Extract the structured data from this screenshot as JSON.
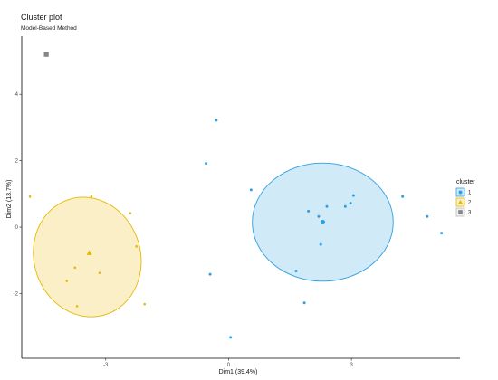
{
  "chart_data": {
    "type": "scatter",
    "title": "Cluster plot",
    "subtitle": "Model-Based Method",
    "xlabel": "Dim1 (39.4%)",
    "ylabel": "Dim2 (13.7%)",
    "xlim": [
      -5.05,
      5.65
    ],
    "ylim": [
      -3.95,
      5.75
    ],
    "x_ticks": [
      -3,
      0,
      3
    ],
    "x_tick_labels": [
      "-3",
      "0",
      "3"
    ],
    "y_ticks": [
      -2,
      0,
      2,
      4
    ],
    "y_tick_labels": [
      "-2",
      "0",
      "2",
      "4"
    ],
    "grid": false,
    "legend": {
      "title": "cluster",
      "position": "right",
      "entries": [
        {
          "label": "1",
          "color": "#2E9FDF",
          "shape": "circle"
        },
        {
          "label": "2",
          "color": "#E7B800",
          "shape": "triangle"
        },
        {
          "label": "3",
          "color": "#868686",
          "shape": "square"
        }
      ]
    },
    "series": [
      {
        "name": "1",
        "color": "#2E9FDF",
        "shape": "circle",
        "centroid": [
          2.3,
          0.15
        ],
        "ellipse": {
          "cx": 2.3,
          "cy": 0.15,
          "rx": 1.72,
          "ry": 1.78,
          "rotation": 0
        },
        "points": [
          [
            -0.3,
            3.22
          ],
          [
            -0.55,
            1.92
          ],
          [
            0.55,
            1.12
          ],
          [
            -0.45,
            -1.42
          ],
          [
            1.65,
            -1.32
          ],
          [
            1.95,
            0.48
          ],
          [
            2.2,
            0.32
          ],
          [
            2.4,
            0.62
          ],
          [
            2.25,
            -0.52
          ],
          [
            2.85,
            0.62
          ],
          [
            2.98,
            0.72
          ],
          [
            3.05,
            0.95
          ],
          [
            1.85,
            -2.28
          ],
          [
            0.05,
            -3.32
          ],
          [
            4.25,
            0.92
          ],
          [
            4.85,
            0.32
          ],
          [
            5.2,
            -0.18
          ]
        ]
      },
      {
        "name": "2",
        "color": "#E7B800",
        "shape": "triangle",
        "centroid": [
          -3.4,
          -0.78
        ],
        "ellipse": {
          "cx": -3.45,
          "cy": -0.9,
          "rx": 1.3,
          "ry": 1.82,
          "rotation": 18
        },
        "points": [
          [
            -4.85,
            0.92
          ],
          [
            -3.35,
            0.92
          ],
          [
            -2.4,
            0.42
          ],
          [
            -2.25,
            -0.58
          ],
          [
            -3.15,
            -1.38
          ],
          [
            -3.75,
            -1.22
          ],
          [
            -3.95,
            -1.62
          ],
          [
            -3.7,
            -2.38
          ],
          [
            -2.05,
            -2.32
          ]
        ]
      },
      {
        "name": "3",
        "color": "#868686",
        "shape": "square",
        "centroid": [
          -4.45,
          5.2
        ],
        "points": []
      }
    ]
  }
}
